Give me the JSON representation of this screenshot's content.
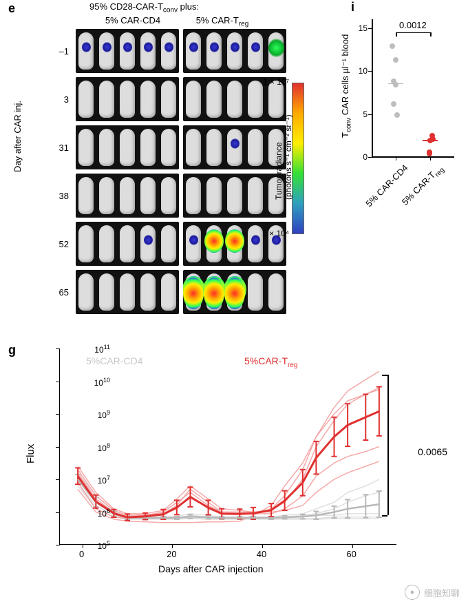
{
  "panel_e": {
    "label": "e",
    "supertitle_pre": "95% CD28-CAR-T",
    "supertitle_sub": "conv",
    "supertitle_post": " plus:",
    "col1": "5% CAR-CD4",
    "col2_pre": "5% CAR-T",
    "col2_sub": "reg",
    "ylabel": "Day after  CAR inj.",
    "days": [
      "–1",
      "3",
      "31",
      "38",
      "52",
      "65"
    ],
    "signal_matrix": [
      [
        [
          1,
          1,
          1,
          1,
          1
        ],
        [
          1,
          1,
          1,
          1,
          3
        ]
      ],
      [
        [
          0,
          0,
          0,
          0,
          0
        ],
        [
          0,
          0,
          0,
          0,
          0
        ]
      ],
      [
        [
          0,
          0,
          0,
          0,
          0
        ],
        [
          0,
          0,
          1,
          0,
          0
        ]
      ],
      [
        [
          0,
          0,
          0,
          0,
          0
        ],
        [
          0,
          0,
          0,
          0,
          0
        ]
      ],
      [
        [
          0,
          0,
          0,
          1,
          0
        ],
        [
          1,
          4,
          4,
          1,
          1
        ]
      ],
      [
        [
          0,
          0,
          0,
          0,
          0
        ],
        [
          5,
          5,
          5,
          0,
          0
        ]
      ]
    ],
    "colorbar": {
      "top": "1 × 10⁷",
      "bottom": "5 × 10⁴",
      "label_line1": "Tumor radiance",
      "label_line2": "(photons s⁻¹ cm⁻² sr⁻¹)"
    }
  },
  "panel_i": {
    "label": "i",
    "ylabel_pre": "T",
    "ylabel_sub": "conv",
    "ylabel_post": " CAR cells µl⁻¹ blood",
    "pvalue": "0.0012",
    "ylim": [
      0,
      16
    ],
    "yticks": [
      0,
      5,
      10,
      15
    ],
    "groups": [
      {
        "label": "5% CAR-CD4",
        "color": "#bdbdbd",
        "median": 8.6
      },
      {
        "label_pre": "5% CAR-T",
        "label_sub": "reg",
        "color": "#e03030",
        "median": 2.0
      }
    ],
    "points": [
      {
        "g": 0,
        "y": 12.9
      },
      {
        "g": 0,
        "y": 11.3
      },
      {
        "g": 0,
        "y": 8.8
      },
      {
        "g": 0,
        "y": 8.4
      },
      {
        "g": 0,
        "y": 6.2
      },
      {
        "g": 0,
        "y": 4.9
      },
      {
        "g": 1,
        "y": 2.5
      },
      {
        "g": 1,
        "y": 2.1
      },
      {
        "g": 1,
        "y": 1.9
      },
      {
        "g": 1,
        "y": 0.6
      },
      {
        "g": 1,
        "y": 0.4
      }
    ]
  },
  "panel_g": {
    "label": "g",
    "ylabel": "Flux",
    "xlabel": "Days after CAR injection",
    "pvalue": "0.0065",
    "xlim": [
      -5,
      70
    ],
    "ylim_log10": [
      5,
      11
    ],
    "xticks": [
      0,
      20,
      40,
      60
    ],
    "ytick_exps": [
      5,
      6,
      7,
      8,
      9,
      10,
      11
    ],
    "legend": {
      "cd4_label": "5%CAR-CD4",
      "cd4_color": "#c8c8c8",
      "treg_label_pre": "5%CAR-T",
      "treg_label_sub": "reg",
      "treg_color": "#e03030"
    },
    "colors": {
      "cd4_mean": "#b8b8b8",
      "cd4_indiv": "#dcdcdc",
      "treg_mean": "#e03030",
      "treg_indiv": "#f4a0a0"
    },
    "x_days": [
      -1,
      3,
      7,
      10,
      14,
      18,
      21,
      24,
      28,
      31,
      35,
      38,
      42,
      45,
      49,
      52,
      56,
      59,
      63,
      66
    ],
    "cd4_individuals": [
      [
        6.9,
        6.2,
        5.9,
        5.8,
        5.8,
        5.8,
        5.8,
        5.85,
        5.8,
        5.8,
        5.8,
        5.8,
        5.8,
        5.8,
        5.8,
        5.8,
        5.85,
        5.85,
        5.85,
        5.85
      ],
      [
        7.0,
        6.3,
        5.95,
        5.8,
        5.85,
        5.85,
        5.85,
        5.8,
        5.85,
        5.85,
        5.85,
        5.85,
        5.85,
        5.85,
        5.85,
        5.9,
        5.9,
        5.95,
        5.95,
        5.95
      ],
      [
        7.1,
        6.4,
        6.0,
        5.85,
        5.82,
        5.82,
        5.82,
        5.9,
        5.85,
        5.82,
        5.82,
        5.82,
        5.82,
        5.85,
        5.9,
        5.95,
        6.1,
        6.3,
        6.5,
        6.6
      ],
      [
        7.2,
        6.5,
        6.05,
        5.9,
        5.85,
        5.85,
        5.87,
        5.95,
        5.9,
        5.85,
        5.85,
        5.85,
        5.85,
        5.9,
        5.95,
        6.1,
        6.3,
        6.6,
        6.8,
        7.0
      ],
      [
        6.8,
        6.1,
        5.85,
        5.78,
        5.78,
        5.78,
        5.78,
        5.8,
        5.78,
        5.78,
        5.78,
        5.78,
        5.78,
        5.78,
        5.78,
        5.78,
        5.8,
        5.8,
        5.8,
        5.8
      ]
    ],
    "cd4_mean": [
      7.0,
      6.3,
      5.95,
      5.82,
      5.82,
      5.82,
      5.82,
      5.86,
      5.84,
      5.82,
      5.82,
      5.82,
      5.82,
      5.84,
      5.86,
      5.9,
      6.0,
      6.1,
      6.18,
      6.24
    ],
    "treg_individuals": [
      [
        7.2,
        6.4,
        6.0,
        5.85,
        5.9,
        5.95,
        6.1,
        6.5,
        6.1,
        5.95,
        5.95,
        5.95,
        6.1,
        6.5,
        7.3,
        8.3,
        9.2,
        9.7,
        10.05,
        10.3
      ],
      [
        7.3,
        6.5,
        6.05,
        5.9,
        5.92,
        5.95,
        6.2,
        6.7,
        6.3,
        6.0,
        6.0,
        6.0,
        6.05,
        6.3,
        7.0,
        8.0,
        8.8,
        9.3,
        9.6,
        9.8
      ],
      [
        6.9,
        6.1,
        5.85,
        5.8,
        5.9,
        6.0,
        6.3,
        6.6,
        6.2,
        6.0,
        6.0,
        5.95,
        5.95,
        6.1,
        6.5,
        7.1,
        7.5,
        7.7,
        7.85,
        8.0
      ],
      [
        6.7,
        6.0,
        5.78,
        5.72,
        5.7,
        5.68,
        5.68,
        5.68,
        5.7,
        5.7,
        5.72,
        5.9,
        6.2,
        6.8,
        7.5,
        8.3,
        9.0,
        9.4,
        9.6,
        9.75
      ],
      [
        7.4,
        6.6,
        6.1,
        5.95,
        5.95,
        6.05,
        6.4,
        6.8,
        6.4,
        6.1,
        6.05,
        6.0,
        6.0,
        6.05,
        6.2,
        6.6,
        7.0,
        7.2,
        7.4,
        7.55
      ]
    ],
    "treg_mean": [
      7.1,
      6.32,
      5.96,
      5.84,
      5.87,
      5.93,
      6.14,
      6.46,
      6.14,
      5.95,
      5.94,
      5.96,
      6.06,
      6.35,
      6.9,
      7.66,
      8.3,
      8.66,
      8.9,
      9.08
    ],
    "treg_err": [
      0.25,
      0.2,
      0.12,
      0.1,
      0.1,
      0.15,
      0.22,
      0.3,
      0.22,
      0.15,
      0.15,
      0.18,
      0.2,
      0.3,
      0.4,
      0.5,
      0.6,
      0.65,
      0.7,
      0.75
    ],
    "cd4_err": [
      0.15,
      0.15,
      0.08,
      0.05,
      0.04,
      0.04,
      0.04,
      0.06,
      0.05,
      0.04,
      0.04,
      0.04,
      0.04,
      0.05,
      0.07,
      0.12,
      0.18,
      0.28,
      0.35,
      0.4
    ]
  },
  "watermark": {
    "text": "细胞知聊",
    "logo": "●"
  }
}
